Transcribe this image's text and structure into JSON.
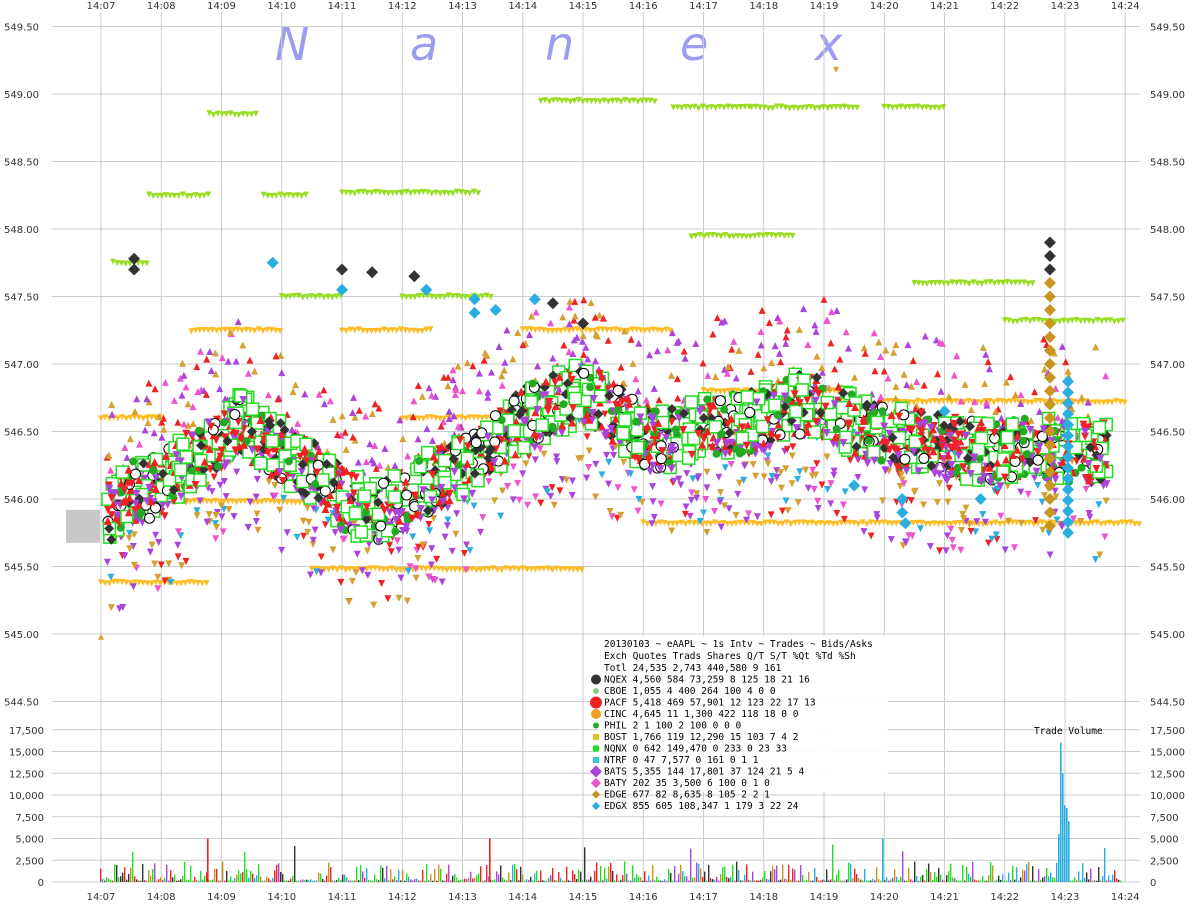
{
  "watermark_letters": [
    "N",
    "a",
    "n",
    "e",
    "x"
  ],
  "colors": {
    "NQEX": "#333333",
    "CBOE": "#88cc88",
    "PACF": "#ee2222",
    "CINC": "#f0a020",
    "PHIL": "#22aa22",
    "BOST": "#e8c020",
    "NQNX": "#22dd22",
    "NTRF": "#33ccdd",
    "BATS": "#aa44dd",
    "BATY": "#ee55cc",
    "EDGE": "#c8961e",
    "EDGX": "#2aaee0",
    "ask_green": "#99dd22",
    "ask_orange": "#ffbb22",
    "bid_gold": "#d4a030"
  },
  "chart_data": {
    "type": "scatter",
    "xlabel": "",
    "ylabel": "",
    "x_ticks": [
      "14:07",
      "14:08",
      "14:09",
      "14:10",
      "14:11",
      "14:12",
      "14:13",
      "14:14",
      "14:15",
      "14:16",
      "14:17",
      "14:18",
      "14:19",
      "14:20",
      "14:21",
      "14:22",
      "14:23",
      "14:24"
    ],
    "price_ticks": [
      "545.00",
      "545.50",
      "546.00",
      "546.50",
      "547.00",
      "547.50",
      "548.00",
      "548.50",
      "549.00",
      "549.50"
    ],
    "price_low_tick": "544.50",
    "price_range": [
      544.5,
      549.5
    ],
    "volume_ticks": [
      "0",
      "2,500",
      "5,000",
      "7,500",
      "10,000",
      "12,500",
      "15,000",
      "17,500"
    ],
    "volume_range": [
      0,
      17500
    ],
    "volume_label": "Trade Volume",
    "grid": true,
    "trade_price_path": [
      [
        0,
        545.85
      ],
      [
        0.5,
        546.05
      ],
      [
        1,
        546.1
      ],
      [
        1.5,
        546.3
      ],
      [
        2,
        546.45
      ],
      [
        2.3,
        546.6
      ],
      [
        2.6,
        546.45
      ],
      [
        3,
        546.35
      ],
      [
        3.3,
        546.25
      ],
      [
        3.6,
        546.2
      ],
      [
        4,
        546.0
      ],
      [
        4.5,
        545.9
      ],
      [
        5,
        546.0
      ],
      [
        5.5,
        546.15
      ],
      [
        6,
        546.25
      ],
      [
        6.5,
        546.4
      ],
      [
        7,
        546.6
      ],
      [
        7.5,
        546.7
      ],
      [
        8,
        546.8
      ],
      [
        8.5,
        546.65
      ],
      [
        9,
        546.45
      ],
      [
        9.5,
        546.45
      ],
      [
        10,
        546.55
      ],
      [
        10.5,
        546.55
      ],
      [
        11,
        546.6
      ],
      [
        11.5,
        546.7
      ],
      [
        12,
        546.7
      ],
      [
        12.5,
        546.55
      ],
      [
        13,
        546.45
      ],
      [
        13.5,
        546.45
      ],
      [
        14,
        546.4
      ],
      [
        14.5,
        546.35
      ],
      [
        15,
        546.35
      ],
      [
        15.5,
        546.4
      ],
      [
        16,
        546.35
      ],
      [
        16.5,
        546.35
      ],
      [
        17,
        546.3
      ]
    ],
    "stats": {
      "title": "20130103 ~ eAAPL ~ 1s Intv ~ Trades ~ Bids/Asks",
      "header": "Exch Quotes Trads   Shares  Q/T    S/T  %Qt %Td %Sh",
      "rows": [
        {
          "code": "Totl",
          "line": "Totl 24,535 2,743  440,580    9    161"
        },
        {
          "code": "NQEX",
          "line": "NQEX  4,560   584   73,259    8    125  18  21  16"
        },
        {
          "code": "CBOE",
          "line": "CBOE  1,055     4      400  264    100   4   0   0"
        },
        {
          "code": "PACF",
          "line": "PACF  5,418   469   57,901   12    123  22  17  13"
        },
        {
          "code": "CINC",
          "line": "CINC  4,645    11    1,300  422    118  18   0   0"
        },
        {
          "code": "PHIL",
          "line": "PHIL      2     1      100    2    100   0   0   0"
        },
        {
          "code": "BOST",
          "line": "BOST  1,766   119   12,290   15    103   7   4   2"
        },
        {
          "code": "NQNX",
          "line": "NQNX      0   642  149,470    0    233   0  23  33"
        },
        {
          "code": "NTRF",
          "line": "NTRF      0    47    7,577    0    161   0   1   1"
        },
        {
          "code": "BATS",
          "line": "BATS  5,355   144   17,801   37    124  21   5   4"
        },
        {
          "code": "BATY",
          "line": "BATY    202    35    3,500    6    100   0   1   0"
        },
        {
          "code": "EDGE",
          "line": "EDGE    677    82    8,635    8    105   2   2   1"
        },
        {
          "code": "EDGX",
          "line": "EDGX    855   605  108,347    1    179   3  22  24"
        }
      ]
    }
  }
}
